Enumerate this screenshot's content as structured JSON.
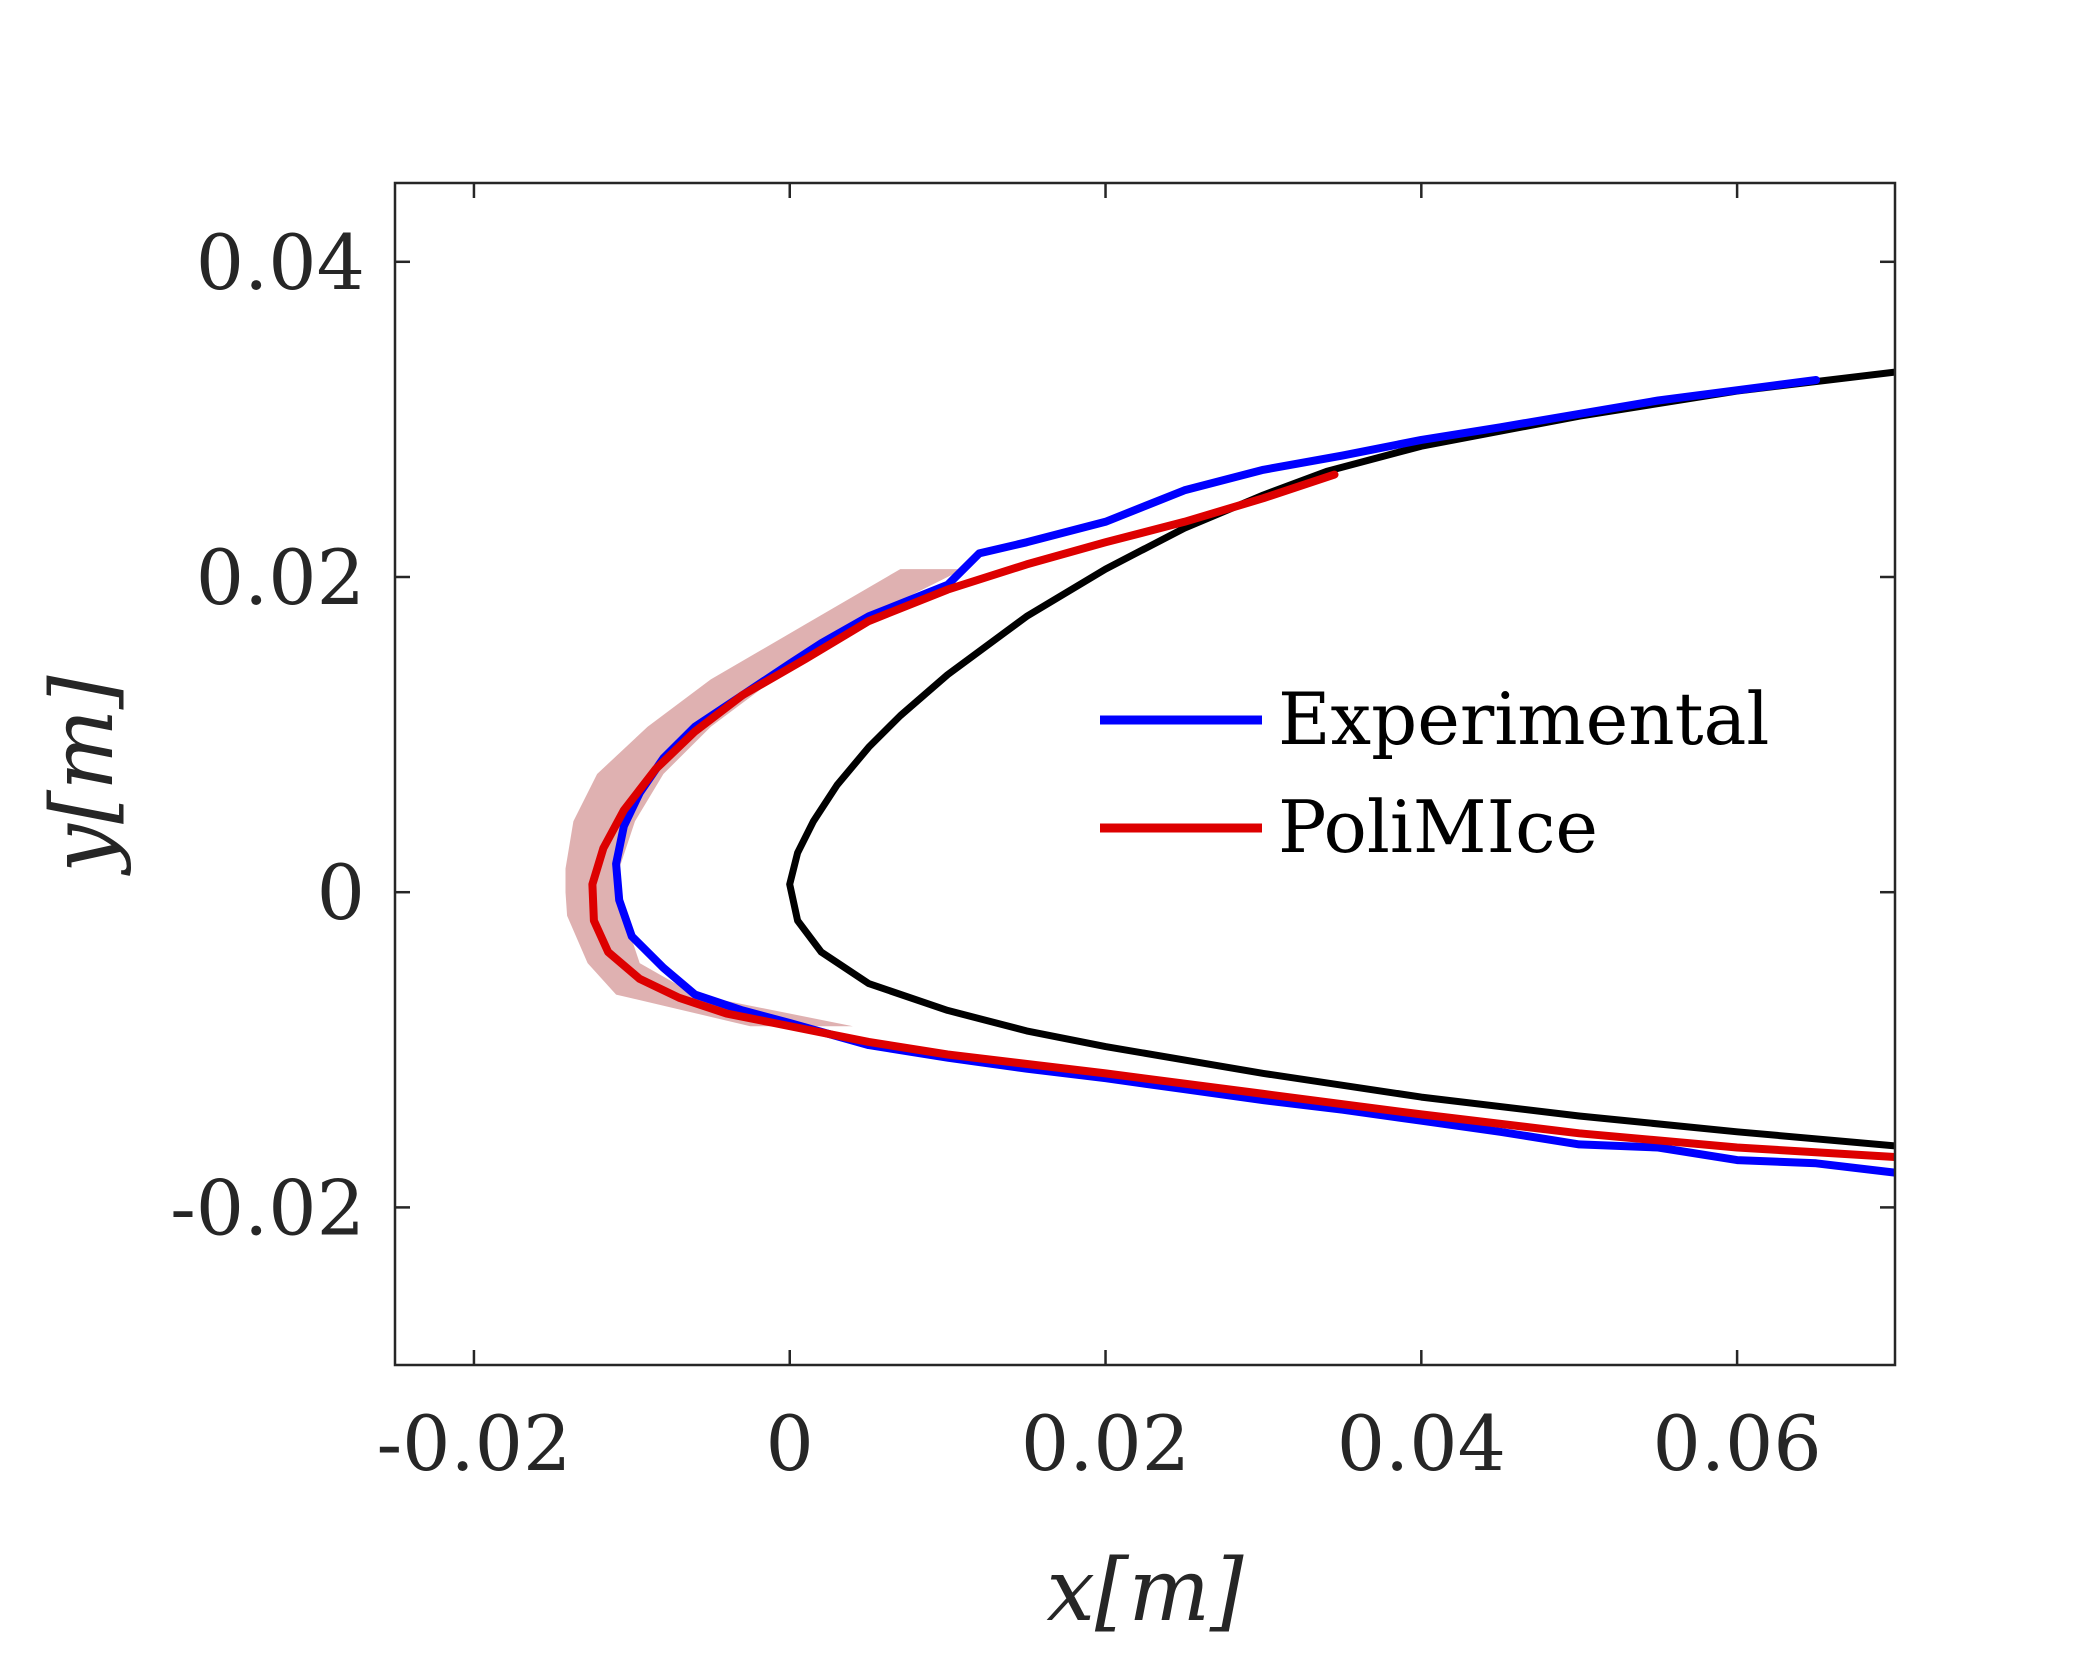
{
  "chart_data": {
    "type": "line",
    "title": "",
    "xlabel": "x[m]",
    "ylabel": "y[m]",
    "xlim": [
      -0.025,
      0.07
    ],
    "ylim": [
      -0.03,
      0.045
    ],
    "xticks": [
      -0.02,
      0,
      0.02,
      0.04,
      0.06
    ],
    "xtick_labels": [
      "-0.02",
      "0",
      "0.02",
      "0.04",
      "0.06"
    ],
    "yticks": [
      -0.02,
      0,
      0.02,
      0.04
    ],
    "ytick_labels": [
      "-0.02",
      "0",
      "0.02",
      "0.04"
    ],
    "grid": false,
    "legend_position": "center-right",
    "series": [
      {
        "name": "",
        "color": "#000000",
        "x": [
          0.07,
          0.06,
          0.05,
          0.04,
          0.034,
          0.03,
          0.025,
          0.02,
          0.015,
          0.01,
          0.007,
          0.005,
          0.003,
          0.0015,
          0.0005,
          0.0,
          0.0005,
          0.002,
          0.005,
          0.01,
          0.015,
          0.02,
          0.03,
          0.04,
          0.05,
          0.06,
          0.07
        ],
        "y": [
          0.033,
          0.0318,
          0.0302,
          0.0283,
          0.0267,
          0.0252,
          0.0231,
          0.0205,
          0.0175,
          0.0138,
          0.0112,
          0.0092,
          0.0068,
          0.0045,
          0.0025,
          0.0005,
          -0.0018,
          -0.0038,
          -0.0058,
          -0.0075,
          -0.0088,
          -0.0098,
          -0.0115,
          -0.013,
          -0.0142,
          -0.0152,
          -0.0161
        ]
      },
      {
        "name": "Experimental",
        "color": "#0000ff",
        "x": [
          0.065,
          0.055,
          0.045,
          0.04,
          0.035,
          0.03,
          0.025,
          0.02,
          0.015,
          0.012,
          0.01,
          0.005,
          0.002,
          0.0,
          -0.003,
          -0.006,
          -0.008,
          -0.0095,
          -0.0105,
          -0.011,
          -0.0108,
          -0.01,
          -0.008,
          -0.006,
          -0.003,
          0.0,
          0.005,
          0.01,
          0.015,
          0.02,
          0.025,
          0.03,
          0.035,
          0.04,
          0.045,
          0.05,
          0.055,
          0.06,
          0.065,
          0.07
        ],
        "y": [
          0.0325,
          0.0312,
          0.0295,
          0.0287,
          0.0277,
          0.0268,
          0.0255,
          0.0235,
          0.0222,
          0.0215,
          0.0195,
          0.0175,
          0.0158,
          0.0145,
          0.0125,
          0.0105,
          0.0085,
          0.0063,
          0.0042,
          0.0018,
          -0.0005,
          -0.0028,
          -0.0048,
          -0.0065,
          -0.0075,
          -0.0083,
          -0.0097,
          -0.0105,
          -0.0112,
          -0.0118,
          -0.0125,
          -0.0132,
          -0.0138,
          -0.0145,
          -0.0152,
          -0.016,
          -0.0162,
          -0.017,
          -0.0172,
          -0.0178
        ]
      },
      {
        "name": "PoliMIce",
        "color": "#dd0000",
        "x": [
          0.0345,
          0.03,
          0.025,
          0.02,
          0.015,
          0.01,
          0.005,
          0.001,
          -0.003,
          -0.006,
          -0.0085,
          -0.0105,
          -0.0118,
          -0.0125,
          -0.0124,
          -0.0115,
          -0.0095,
          -0.007,
          -0.004,
          -0.001,
          0.005,
          0.01,
          0.02,
          0.03,
          0.04,
          0.05,
          0.06,
          0.07
        ],
        "y": [
          0.0265,
          0.025,
          0.0235,
          0.0222,
          0.0208,
          0.0192,
          0.0172,
          0.0148,
          0.0125,
          0.0102,
          0.0078,
          0.0052,
          0.0028,
          0.0005,
          -0.0018,
          -0.0038,
          -0.0055,
          -0.0067,
          -0.0077,
          -0.0083,
          -0.0095,
          -0.0103,
          -0.0115,
          -0.0128,
          -0.0141,
          -0.0153,
          -0.0162,
          -0.0168
        ]
      }
    ],
    "uncertainty_band": {
      "color": "#d9a3a3",
      "y": [
        0.0205,
        0.017,
        0.0135,
        0.0105,
        0.0075,
        0.0045,
        0.0015,
        0.0,
        -0.0015,
        -0.0045,
        -0.0065,
        -0.0085
      ],
      "x_low": [
        0.007,
        0.001,
        -0.005,
        -0.009,
        -0.0122,
        -0.0137,
        -0.0142,
        -0.0142,
        -0.0141,
        -0.0128,
        -0.011,
        -0.0025
      ],
      "x_high": [
        0.011,
        0.004,
        -0.001,
        -0.005,
        -0.008,
        -0.0098,
        -0.0108,
        -0.0108,
        -0.0105,
        -0.0095,
        -0.006,
        0.004
      ]
    }
  }
}
